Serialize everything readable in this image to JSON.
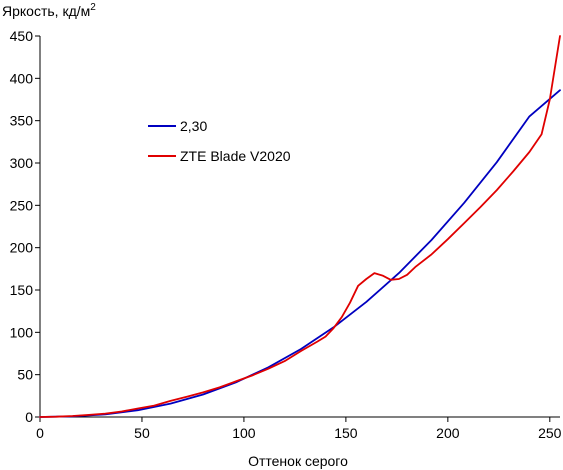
{
  "chart_data": {
    "type": "line",
    "ylabel": "Яркость, кд/м",
    "ylabel_sup": "2",
    "xlabel": "Оттенок серого",
    "xlim": [
      0,
      255
    ],
    "ylim": [
      0,
      450
    ],
    "xticks": [
      "0",
      "50",
      "100",
      "150",
      "200",
      "250"
    ],
    "yticks": [
      "0",
      "50",
      "100",
      "150",
      "200",
      "250",
      "300",
      "350",
      "400",
      "450"
    ],
    "grid": false,
    "legend_position": "center-left",
    "series": [
      {
        "name": "2,30",
        "color": "#0000c0",
        "x": [
          0,
          16,
          32,
          48,
          64,
          80,
          96,
          112,
          128,
          144,
          160,
          176,
          192,
          208,
          224,
          240,
          255
        ],
        "y": [
          0,
          0.8,
          3.2,
          8,
          15.8,
          26.6,
          40.9,
          58.7,
          80.3,
          106,
          136,
          170,
          209,
          253,
          301,
          355,
          386
        ]
      },
      {
        "name": "ZTE Blade V2020",
        "color": "#e00000",
        "x": [
          0,
          8,
          16,
          24,
          32,
          40,
          48,
          56,
          64,
          72,
          80,
          88,
          96,
          104,
          112,
          120,
          128,
          136,
          140,
          144,
          148,
          152,
          156,
          160,
          164,
          168,
          172,
          176,
          180,
          184,
          192,
          200,
          208,
          216,
          224,
          232,
          240,
          246,
          250,
          255
        ],
        "y": [
          0,
          0.3,
          1.2,
          2.5,
          4,
          6.5,
          10,
          13.5,
          19,
          24,
          29,
          35,
          42,
          49,
          57,
          66,
          78,
          89,
          95,
          105,
          118,
          135,
          155,
          163,
          170,
          167,
          162,
          163,
          168,
          177,
          192,
          210,
          229,
          248,
          268,
          290,
          313,
          334,
          375,
          450
        ]
      }
    ]
  }
}
